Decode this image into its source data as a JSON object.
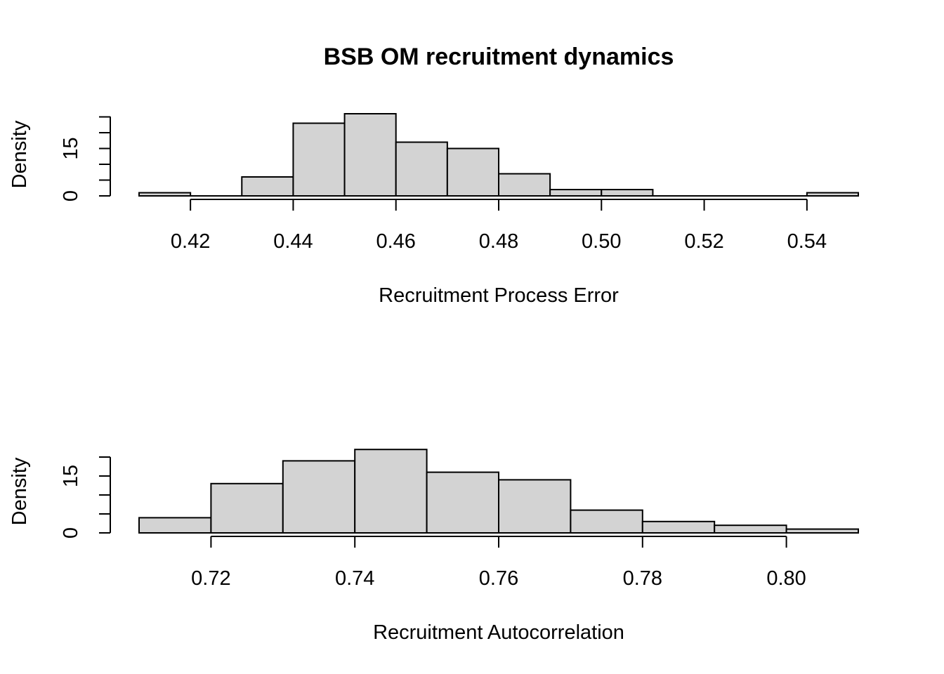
{
  "chart_data": [
    {
      "type": "bar",
      "title": "BSB OM recruitment dynamics",
      "xlabel": "Recruitment Process Error",
      "ylabel": "Density",
      "bin_edges": [
        0.41,
        0.42,
        0.43,
        0.44,
        0.45,
        0.46,
        0.47,
        0.48,
        0.49,
        0.5,
        0.51,
        0.52,
        0.53,
        0.54,
        0.55
      ],
      "values": [
        1,
        0,
        6,
        23,
        26,
        17,
        15,
        7,
        2,
        2,
        0,
        0,
        0,
        1
      ],
      "xlim": [
        0.41,
        0.55
      ],
      "ylim": [
        0,
        25
      ],
      "x_ticks": [
        "0.42",
        "0.44",
        "0.46",
        "0.48",
        "0.50",
        "0.52",
        "0.54"
      ],
      "y_ticks": [
        "0",
        "15"
      ],
      "bar_color": "#d3d3d3",
      "grid": false
    },
    {
      "type": "bar",
      "title": "",
      "xlabel": "Recruitment Autocorrelation",
      "ylabel": "Density",
      "bin_edges": [
        0.71,
        0.72,
        0.73,
        0.74,
        0.75,
        0.76,
        0.77,
        0.78,
        0.79,
        0.8,
        0.81
      ],
      "values": [
        4,
        13,
        19,
        22,
        16,
        14,
        6,
        3,
        2,
        1
      ],
      "xlim": [
        0.71,
        0.81
      ],
      "ylim": [
        0,
        20
      ],
      "x_ticks": [
        "0.72",
        "0.74",
        "0.76",
        "0.78",
        "0.80"
      ],
      "y_ticks": [
        "0",
        "15"
      ],
      "bar_color": "#d3d3d3",
      "grid": false
    }
  ]
}
